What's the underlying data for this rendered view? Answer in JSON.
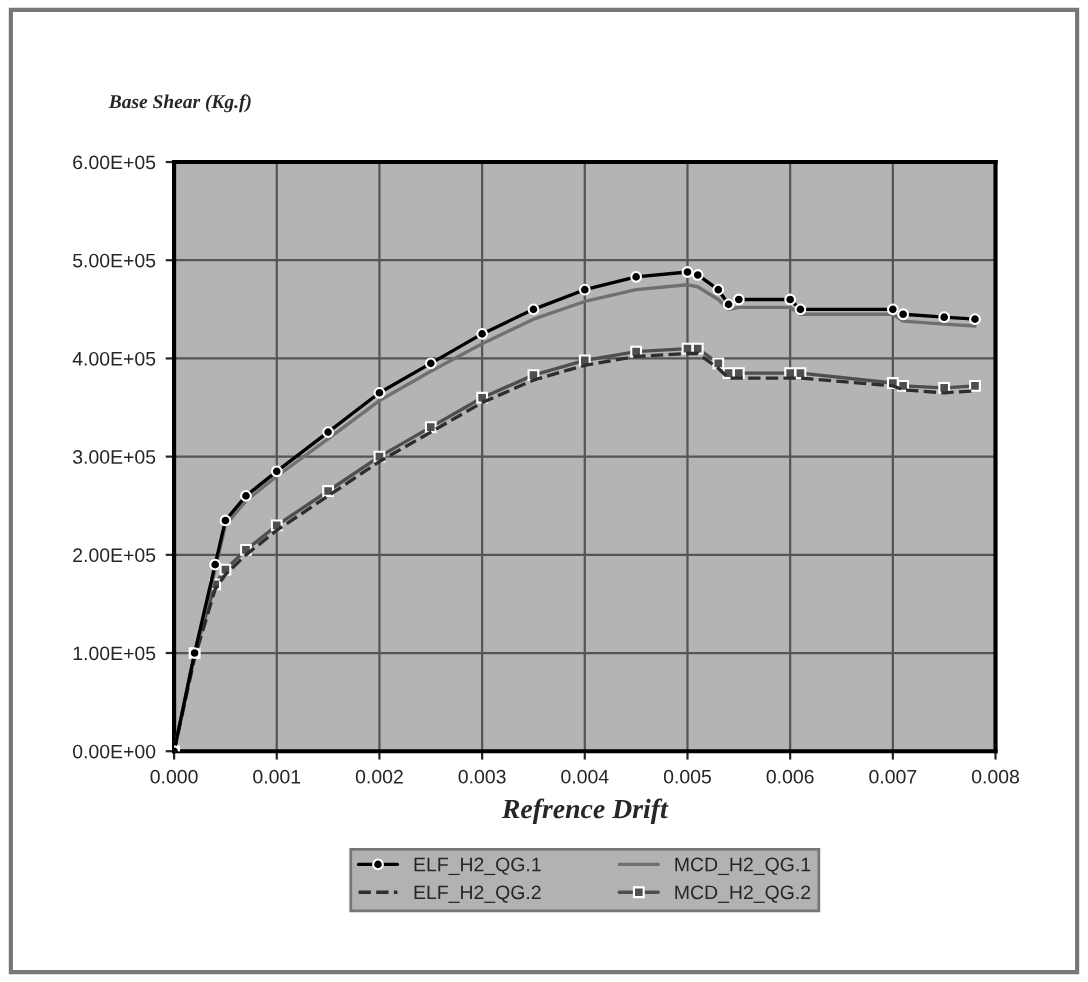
{
  "chart_data": {
    "type": "line",
    "ylabel": "Base Shear (Kg.f)",
    "xlabel": "Refrence Drift",
    "x": [
      0,
      0.0002,
      0.0004,
      0.0005,
      0.0007,
      0.001,
      0.0015,
      0.002,
      0.0025,
      0.003,
      0.0035,
      0.004,
      0.0045,
      0.005,
      0.0051,
      0.0053,
      0.0054,
      0.0055,
      0.006,
      0.0061,
      0.007,
      0.0071,
      0.0075,
      0.0078
    ],
    "series": [
      {
        "name": "ELF_H2_QG.1",
        "color": "#000000",
        "marker": "circle",
        "line_style": "solid",
        "values": [
          0,
          100000,
          190000,
          235000,
          260000,
          285000,
          325000,
          365000,
          395000,
          425000,
          450000,
          470000,
          483000,
          488000,
          485000,
          470000,
          455000,
          460000,
          460000,
          450000,
          450000,
          445000,
          442000,
          440000
        ]
      },
      {
        "name": "ELF_H2_QG.2",
        "color": "#2e2e2e",
        "marker": "none",
        "line_style": "dashed",
        "values": [
          0,
          95000,
          165000,
          180000,
          200000,
          225000,
          260000,
          295000,
          325000,
          355000,
          378000,
          393000,
          402000,
          405000,
          405000,
          390000,
          380000,
          380000,
          380000,
          380000,
          372000,
          368000,
          365000,
          367000
        ]
      },
      {
        "name": "MCD_H2_QG.1",
        "color": "#707070",
        "marker": "none",
        "line_style": "solid",
        "values": [
          0,
          98000,
          185000,
          230000,
          255000,
          280000,
          318000,
          357000,
          387000,
          415000,
          440000,
          458000,
          470000,
          475000,
          473000,
          460000,
          450000,
          452000,
          452000,
          445000,
          445000,
          438000,
          435000,
          433000
        ]
      },
      {
        "name": "MCD_H2_QG.2",
        "color": "#4f4f4f",
        "marker": "square",
        "line_style": "solid",
        "values": [
          0,
          100000,
          170000,
          185000,
          205000,
          230000,
          265000,
          300000,
          330000,
          360000,
          383000,
          398000,
          407000,
          410000,
          410000,
          395000,
          385000,
          385000,
          385000,
          385000,
          375000,
          372000,
          370000,
          372000
        ]
      }
    ],
    "xlim": [
      0,
      0.008
    ],
    "xticks": [
      {
        "value": 0,
        "label": "0.000"
      },
      0.001,
      0.002,
      0.003,
      0.004,
      0.005,
      0.006,
      0.007,
      {
        "value": 0.008,
        "label": "0.008"
      }
    ],
    "ylim": [
      0,
      600000
    ],
    "yticks": [
      {
        "value": 0,
        "label": "0.00E+00"
      },
      {
        "value": 100000,
        "label": "1.00E+05"
      },
      {
        "value": 200000,
        "label": "2.00E+05"
      },
      {
        "value": 300000,
        "label": "3.00E+05"
      },
      {
        "value": 400000,
        "label": "4.00E+05"
      },
      {
        "value": 500000,
        "label": "5.00E+05"
      },
      {
        "value": 600000,
        "label": "6.00E+05"
      }
    ],
    "grid": true,
    "legend": "bottom"
  }
}
